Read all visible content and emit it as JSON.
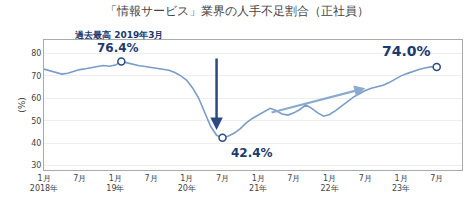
{
  "chart_data": {
    "type": "line",
    "title": "「情報サービス」業界の人手不足割合（正社員）",
    "y_label": "(%)",
    "color": "#7a9cc8",
    "categories": [
      "1月\n2018年",
      null,
      null,
      null,
      null,
      null,
      "7月",
      null,
      null,
      null,
      null,
      null,
      "1月\n19年",
      null,
      null,
      null,
      null,
      null,
      "7月",
      null,
      null,
      null,
      null,
      null,
      "1月\n20年",
      null,
      null,
      null,
      null,
      null,
      "7月",
      null,
      null,
      null,
      null,
      null,
      "1月\n21年",
      null,
      null,
      null,
      null,
      null,
      "7月",
      null,
      null,
      null,
      null,
      null,
      "1月\n22年",
      null,
      null,
      null,
      null,
      null,
      "7月",
      null,
      null,
      null,
      null,
      null,
      "1月\n23年",
      null,
      null,
      null,
      null,
      null,
      "7月"
    ],
    "values": [
      73.0,
      72.3,
      71.5,
      70.8,
      71.2,
      72.0,
      72.8,
      73.2,
      73.8,
      74.2,
      74.6,
      74.3,
      74.8,
      76.4,
      75.8,
      75.0,
      74.5,
      74.2,
      73.8,
      73.5,
      73.0,
      72.5,
      71.5,
      70.0,
      68.0,
      64.5,
      60.0,
      54.0,
      47.5,
      43.5,
      42.4,
      43.2,
      44.5,
      46.5,
      49.0,
      51.0,
      52.5,
      53.8,
      55.5,
      54.5,
      53.0,
      52.5,
      53.5,
      55.0,
      57.0,
      55.5,
      53.5,
      52.0,
      52.8,
      54.5,
      56.5,
      58.5,
      60.5,
      62.0,
      63.5,
      64.5,
      65.0,
      65.8,
      67.0,
      68.5,
      70.0,
      71.0,
      72.0,
      72.8,
      73.5,
      74.0,
      74.0
    ],
    "ylim": [
      28,
      86
    ],
    "yticks": [
      30,
      40,
      50,
      60,
      70,
      80
    ],
    "grid": true,
    "annotations": [
      {
        "text": "過去最高 2019年3月",
        "index": 13
      },
      {
        "text": "76.4%",
        "index": 13
      },
      {
        "text": "42.4%",
        "index": 30
      },
      {
        "text": "74.0%",
        "index": 66
      }
    ],
    "arrows": [
      {
        "from": 13,
        "to": 30
      },
      {
        "from": 38,
        "to": 54
      }
    ]
  }
}
